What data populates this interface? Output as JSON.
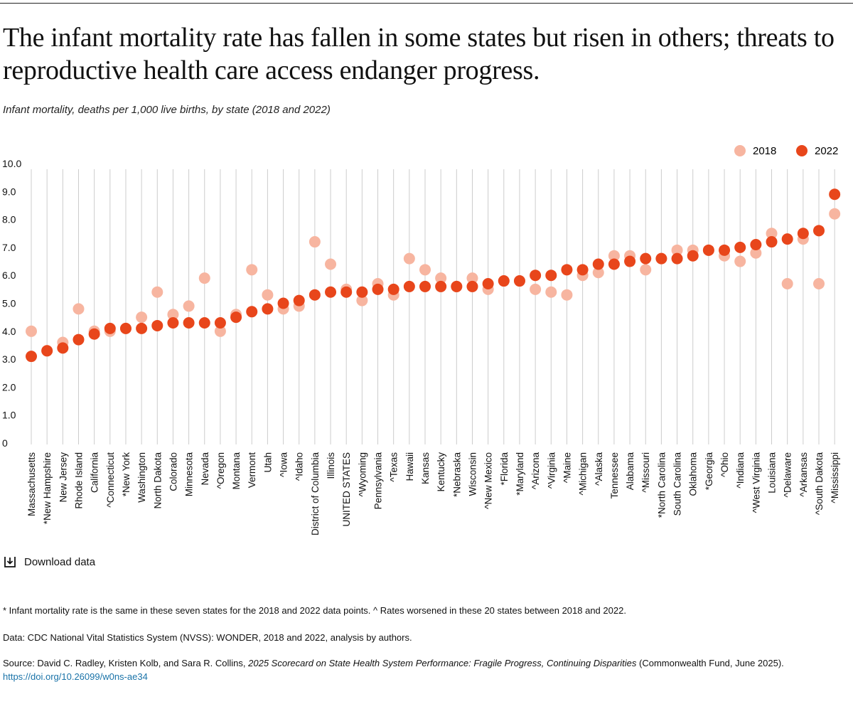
{
  "title": "The infant mortality rate has fallen in some states but risen in others; threats to reproductive health care access endanger progress.",
  "subtitle": "Infant mortality, deaths per 1,000 live births, by state (2018 and 2022)",
  "download_label": "Download data",
  "footnote": "* Infant mortality rate is the same in these seven states for the 2018 and 2022 data points. ^ Rates worsened in these 20 states between 2018 and 2022.",
  "data_note": "Data: CDC National Vital Statistics System (NVSS): WONDER, 2018 and 2022, analysis by authors.",
  "source": {
    "prefix": "Source: David C. Radley, Kristen Kolb, and Sara R. Collins, ",
    "report_title": "2025 Scorecard on State Health System Performance: Fragile Progress, Continuing Disparities",
    "suffix": " (Commonwealth Fund, June 2025).",
    "link": "https://doi.org/10.26099/w0ns-ae34"
  },
  "colors": {
    "s2018": "#f7b5a0",
    "s2022": "#e8461b",
    "grid": "#cccccc",
    "text": "#111111"
  },
  "chart_data": {
    "type": "scatter",
    "title": "Infant mortality, deaths per 1,000 live births, by state (2018 and 2022)",
    "xlabel": "",
    "ylabel": "",
    "ylim": [
      0,
      10
    ],
    "yticks": [
      "0",
      "1.0",
      "2.0",
      "3.0",
      "4.0",
      "5.0",
      "6.0",
      "7.0",
      "8.0",
      "9.0",
      "10.0"
    ],
    "legend_position": "top-right",
    "categories": [
      "Massachusetts",
      "*New Hampshire",
      "New Jersey",
      "Rhode Island",
      "California",
      "^Connecticut",
      "*New York",
      "Washington",
      "North Dakota",
      "Colorado",
      "Minnesota",
      "Nevada",
      "^Oregon",
      "Montana",
      "Vermont",
      "Utah",
      "^Iowa",
      "^Idaho",
      "District of Columbia",
      "Illinois",
      "UNITED STATES",
      "^Wyoming",
      "Pennsylvania",
      "^Texas",
      "Hawaii",
      "Kansas",
      "Kentucky",
      "*Nebraska",
      "Wisconsin",
      "^New Mexico",
      "*Florida",
      "*Maryland",
      "^Arizona",
      "^Virginia",
      "^Maine",
      "^Michigan",
      "^Alaska",
      "Tennessee",
      "Alabama",
      "^Missouri",
      "*North Carolina",
      "South Carolina",
      "Oklahoma",
      "*Georgia",
      "^Ohio",
      "^Indiana",
      "^West Virginia",
      "Louisiana",
      "^Delaware",
      "^Arkansas",
      "^South Dakota",
      "^Mississippi"
    ],
    "series": [
      {
        "name": "2018",
        "values": [
          4.0,
          3.3,
          3.6,
          4.8,
          4.0,
          4.0,
          4.1,
          4.5,
          5.4,
          4.6,
          4.9,
          5.9,
          4.0,
          4.6,
          6.2,
          5.3,
          4.8,
          4.9,
          7.2,
          6.4,
          5.5,
          5.1,
          5.7,
          5.3,
          6.6,
          6.2,
          5.9,
          5.6,
          5.9,
          5.5,
          5.8,
          5.8,
          5.5,
          5.4,
          5.3,
          6.0,
          6.1,
          6.7,
          6.7,
          6.2,
          6.6,
          6.9,
          6.9,
          6.9,
          6.7,
          6.5,
          6.8,
          7.5,
          5.7,
          7.3,
          5.7,
          8.2
        ]
      },
      {
        "name": "2022",
        "values": [
          3.1,
          3.3,
          3.4,
          3.7,
          3.9,
          4.1,
          4.1,
          4.1,
          4.2,
          4.3,
          4.3,
          4.3,
          4.3,
          4.5,
          4.7,
          4.8,
          5.0,
          5.1,
          5.3,
          5.4,
          5.4,
          5.4,
          5.5,
          5.5,
          5.6,
          5.6,
          5.6,
          5.6,
          5.6,
          5.7,
          5.8,
          5.8,
          6.0,
          6.0,
          6.2,
          6.2,
          6.4,
          6.4,
          6.5,
          6.6,
          6.6,
          6.6,
          6.7,
          6.9,
          6.9,
          7.0,
          7.1,
          7.2,
          7.3,
          7.5,
          7.6,
          8.9
        ]
      }
    ]
  }
}
